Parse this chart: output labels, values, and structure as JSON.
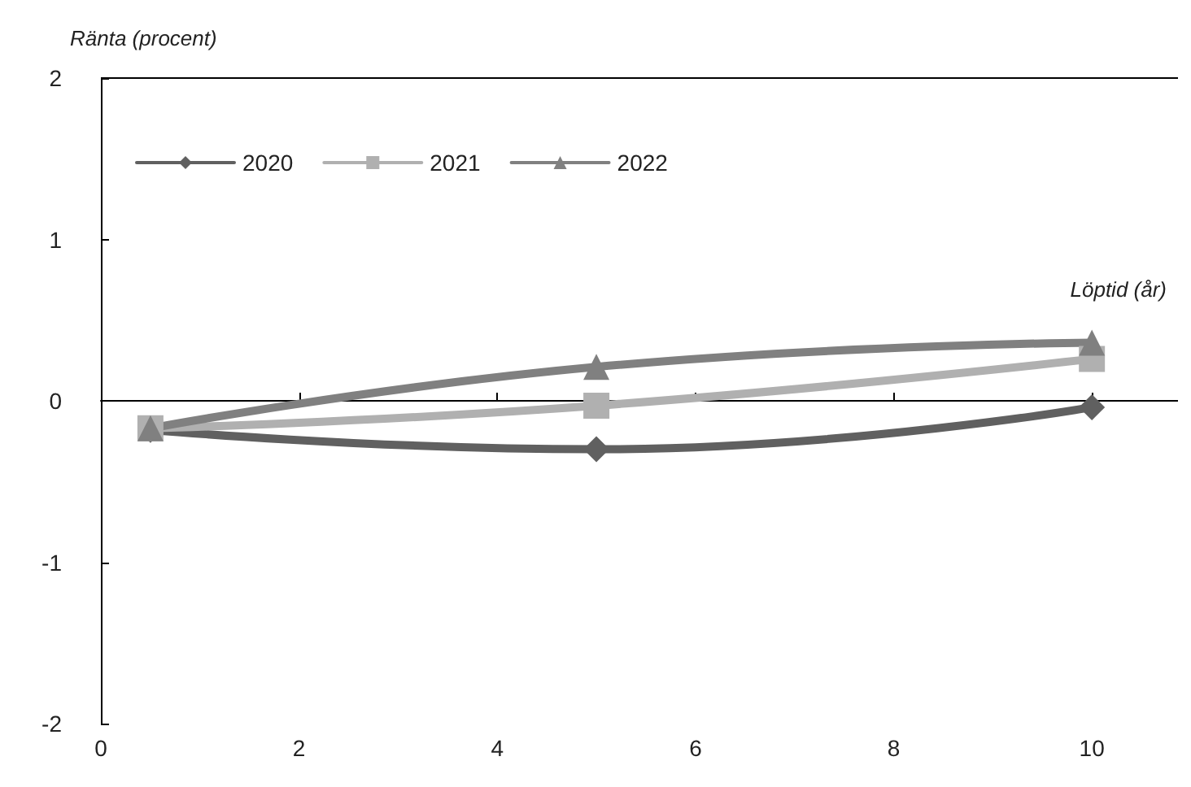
{
  "chart_data": {
    "type": "line",
    "ylabel": "Ränta (procent)",
    "xlabel": "Löptid (år)",
    "x": [
      0.5,
      5,
      10
    ],
    "series": [
      {
        "name": "2020",
        "color": "#606060",
        "marker": "diamond",
        "values": [
          -0.18,
          -0.3,
          -0.04
        ]
      },
      {
        "name": "2021",
        "color": "#b0b0b0",
        "marker": "square",
        "values": [
          -0.17,
          -0.03,
          0.26
        ]
      },
      {
        "name": "2022",
        "color": "#808080",
        "marker": "triangle",
        "values": [
          -0.17,
          0.21,
          0.36
        ]
      }
    ],
    "xlim": [
      0,
      11
    ],
    "xticks": [
      0,
      2,
      4,
      6,
      8,
      10
    ],
    "ylim": [
      -2,
      2
    ],
    "yticks": [
      -2,
      -1,
      0,
      1,
      2
    ],
    "legend": "top left",
    "line_style": "solid"
  }
}
